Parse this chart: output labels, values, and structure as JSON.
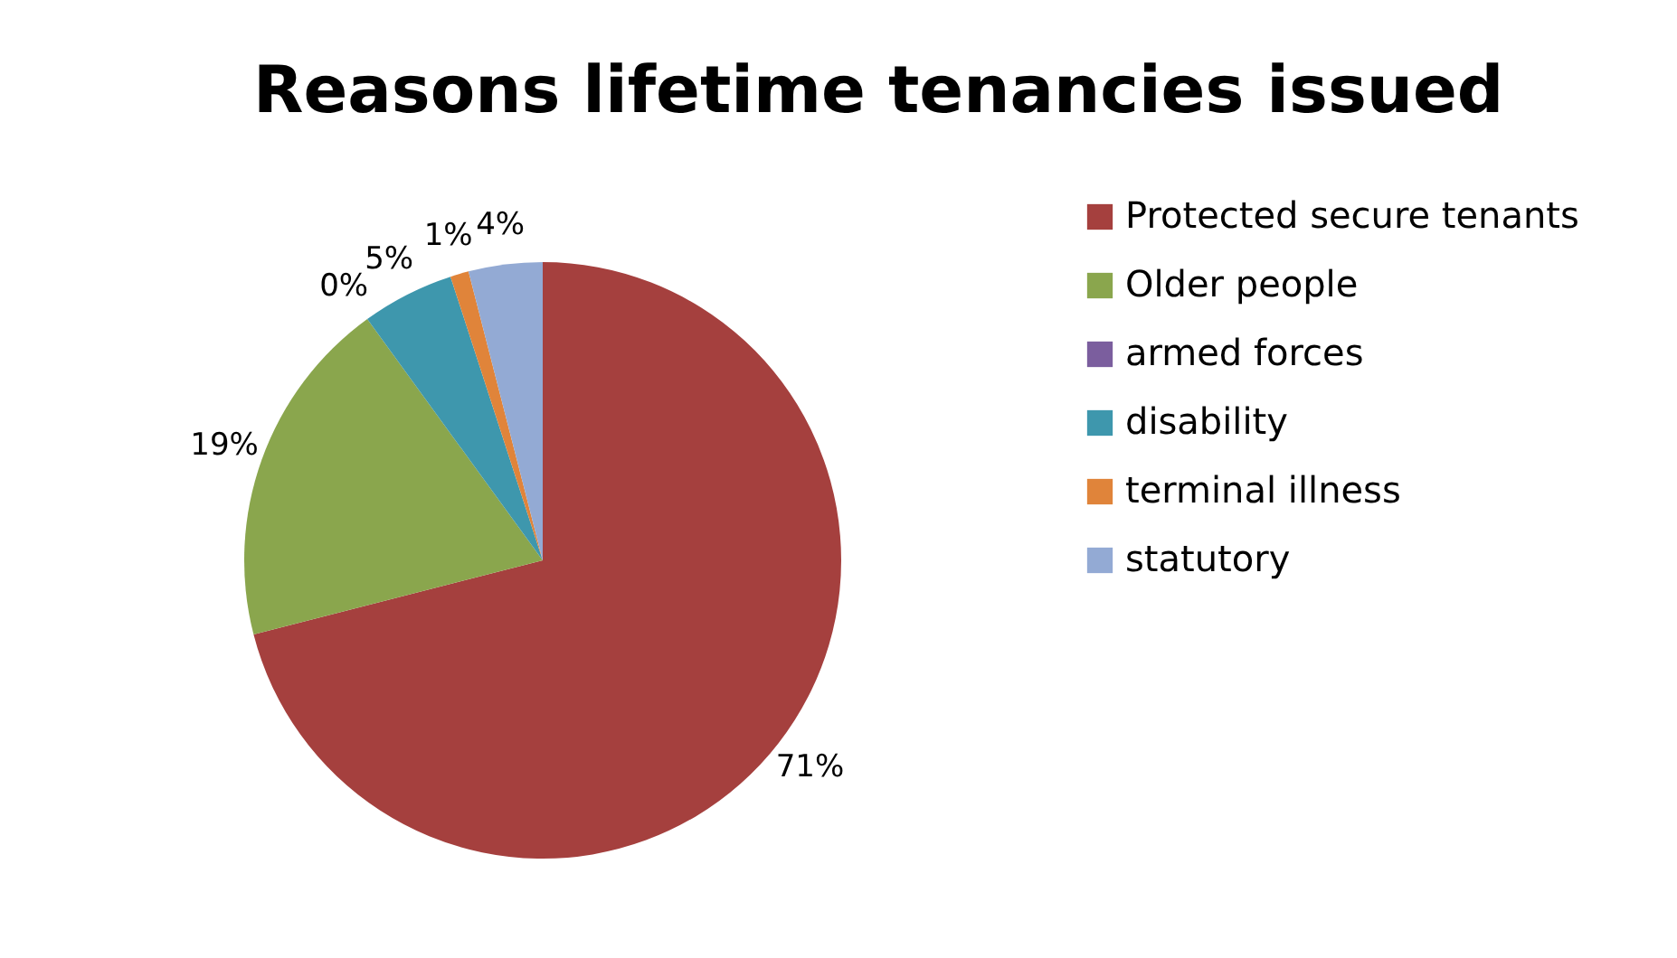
{
  "chart_data": {
    "type": "pie",
    "title": "Reasons lifetime tenancies issued",
    "categories": [
      "Protected secure tenants",
      "Older people",
      "armed forces",
      "disability",
      "terminal illness",
      "statutory"
    ],
    "values": [
      71,
      19,
      0,
      5,
      1,
      4
    ],
    "colors": [
      "#a5403e",
      "#8aa64d",
      "#7b5e9e",
      "#3e97ad",
      "#e0843a",
      "#93aad4"
    ],
    "value_labels": [
      "71%",
      "19%",
      "0%",
      "5%",
      "1%",
      "4%"
    ],
    "legend": "right"
  }
}
